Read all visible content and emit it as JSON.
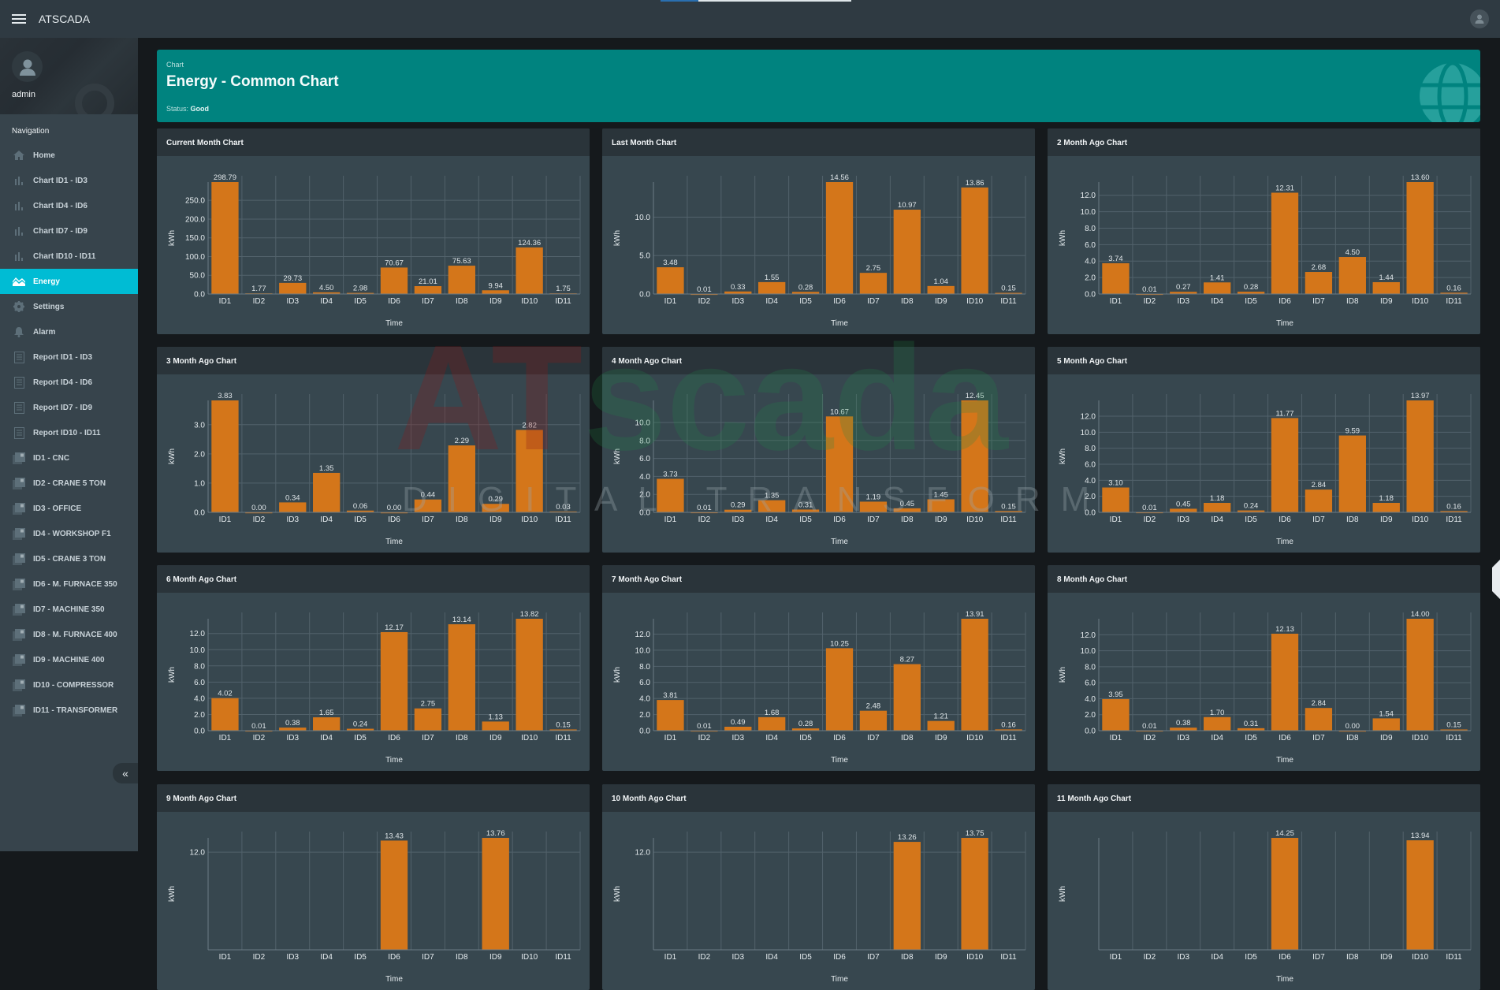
{
  "topbar": {
    "title": "ATSCADA",
    "menu_icon": "hamburger-icon",
    "user_icon": "user-avatar-icon",
    "loading_progress": 0.2
  },
  "sidebar": {
    "username": "admin",
    "nav_header": "Navigation",
    "items": [
      {
        "label": "Home",
        "icon": "home-icon",
        "active": false
      },
      {
        "label": "Chart ID1 - ID3",
        "icon": "bar-chart-icon",
        "active": false
      },
      {
        "label": "Chart ID4 - ID6",
        "icon": "bar-chart-icon",
        "active": false
      },
      {
        "label": "Chart ID7 - ID9",
        "icon": "bar-chart-icon",
        "active": false
      },
      {
        "label": "Chart ID10 - ID11",
        "icon": "bar-chart-icon",
        "active": false
      },
      {
        "label": "Energy",
        "icon": "area-chart-icon",
        "active": true
      },
      {
        "label": "Settings",
        "icon": "gear-icon",
        "active": false
      },
      {
        "label": "Alarm",
        "icon": "bell-icon",
        "active": false
      },
      {
        "label": "Report ID1 - ID3",
        "icon": "report-icon",
        "active": false
      },
      {
        "label": "Report ID4 - ID6",
        "icon": "report-icon",
        "active": false
      },
      {
        "label": "Report ID7 - ID9",
        "icon": "report-icon",
        "active": false
      },
      {
        "label": "Report ID10 - ID11",
        "icon": "report-icon",
        "active": false
      },
      {
        "label": "ID1 - CNC",
        "icon": "device-icon",
        "active": false
      },
      {
        "label": "ID2 - CRANE 5 TON",
        "icon": "device-icon",
        "active": false
      },
      {
        "label": "ID3 - OFFICE",
        "icon": "device-icon",
        "active": false
      },
      {
        "label": "ID4 - WORKSHOP F1",
        "icon": "device-icon",
        "active": false
      },
      {
        "label": "ID5 - CRANE 3 TON",
        "icon": "device-icon",
        "active": false
      },
      {
        "label": "ID6 - M. FURNACE 350",
        "icon": "device-icon",
        "active": false
      },
      {
        "label": "ID7 - MACHINE 350",
        "icon": "device-icon",
        "active": false
      },
      {
        "label": "ID8 - M. FURNACE 400",
        "icon": "device-icon",
        "active": false
      },
      {
        "label": "ID9 - MACHINE 400",
        "icon": "device-icon",
        "active": false
      },
      {
        "label": "ID10 - COMPRESSOR",
        "icon": "device-icon",
        "active": false
      },
      {
        "label": "ID11 - TRANSFORMER",
        "icon": "device-icon",
        "active": false
      }
    ],
    "collapse_label": "«"
  },
  "banner": {
    "crumb": "Chart",
    "title": "Energy - Common Chart",
    "status_label": "Status:",
    "status_value": "Good"
  },
  "colors": {
    "accent": "#00bcd4",
    "banner": "#00837f",
    "bar": "#d4761a",
    "card": "#37474f"
  },
  "chart_data": [
    {
      "type": "bar",
      "title": "Current Month Chart",
      "xlabel": "Time",
      "ylabel": "kWh",
      "categories": [
        "ID1",
        "ID2",
        "ID3",
        "ID4",
        "ID5",
        "ID6",
        "ID7",
        "ID8",
        "ID9",
        "ID10",
        "ID11"
      ],
      "values": [
        298.79,
        1.77,
        29.73,
        4.5,
        2.98,
        70.67,
        21.01,
        75.63,
        9.94,
        124.36,
        1.75
      ],
      "yticks": [
        0,
        50,
        100,
        150,
        200,
        250
      ],
      "ylim": [
        0,
        298.79
      ],
      "grid": true
    },
    {
      "type": "bar",
      "title": "Last Month Chart",
      "xlabel": "Time",
      "ylabel": "kWh",
      "categories": [
        "ID1",
        "ID2",
        "ID3",
        "ID4",
        "ID5",
        "ID6",
        "ID7",
        "ID8",
        "ID9",
        "ID10",
        "ID11"
      ],
      "values": [
        3.48,
        0.01,
        0.33,
        1.55,
        0.28,
        14.56,
        2.75,
        10.97,
        1.04,
        13.86,
        0.15
      ],
      "yticks": [
        0,
        5,
        10
      ],
      "ylim": [
        0,
        14.56
      ],
      "grid": true
    },
    {
      "type": "bar",
      "title": "2 Month Ago Chart",
      "xlabel": "Time",
      "ylabel": "kWh",
      "categories": [
        "ID1",
        "ID2",
        "ID3",
        "ID4",
        "ID5",
        "ID6",
        "ID7",
        "ID8",
        "ID9",
        "ID10",
        "ID11"
      ],
      "values": [
        3.74,
        0.01,
        0.27,
        1.41,
        0.28,
        12.31,
        2.68,
        4.5,
        1.44,
        13.6,
        0.16
      ],
      "yticks": [
        0,
        2,
        4,
        6,
        8,
        10,
        12
      ],
      "ylim": [
        0,
        13.6
      ],
      "grid": true
    },
    {
      "type": "bar",
      "title": "3 Month Ago Chart",
      "xlabel": "Time",
      "ylabel": "kWh",
      "categories": [
        "ID1",
        "ID2",
        "ID3",
        "ID4",
        "ID5",
        "ID6",
        "ID7",
        "ID8",
        "ID9",
        "ID10",
        "ID11"
      ],
      "values": [
        3.83,
        0.0,
        0.34,
        1.35,
        0.06,
        0.0,
        0.44,
        2.29,
        0.29,
        2.82,
        0.03
      ],
      "yticks": [
        0,
        1,
        2,
        3
      ],
      "ylim": [
        0,
        3.83
      ],
      "grid": true
    },
    {
      "type": "bar",
      "title": "4 Month Ago Chart",
      "xlabel": "Time",
      "ylabel": "kWh",
      "categories": [
        "ID1",
        "ID2",
        "ID3",
        "ID4",
        "ID5",
        "ID6",
        "ID7",
        "ID8",
        "ID9",
        "ID10",
        "ID11"
      ],
      "values": [
        3.73,
        0.01,
        0.29,
        1.35,
        0.31,
        10.67,
        1.19,
        0.45,
        1.45,
        12.45,
        0.15
      ],
      "yticks": [
        0,
        2,
        4,
        6,
        8,
        10
      ],
      "ylim": [
        0,
        12.45
      ],
      "grid": true
    },
    {
      "type": "bar",
      "title": "5 Month Ago Chart",
      "xlabel": "Time",
      "ylabel": "kWh",
      "categories": [
        "ID1",
        "ID2",
        "ID3",
        "ID4",
        "ID5",
        "ID6",
        "ID7",
        "ID8",
        "ID9",
        "ID10",
        "ID11"
      ],
      "values": [
        3.1,
        0.01,
        0.45,
        1.18,
        0.24,
        11.77,
        2.84,
        9.59,
        1.18,
        13.97,
        0.16
      ],
      "yticks": [
        0,
        2,
        4,
        6,
        8,
        10,
        12
      ],
      "ylim": [
        0,
        13.97
      ],
      "grid": true
    },
    {
      "type": "bar",
      "title": "6 Month Ago Chart",
      "xlabel": "Time",
      "ylabel": "kWh",
      "categories": [
        "ID1",
        "ID2",
        "ID3",
        "ID4",
        "ID5",
        "ID6",
        "ID7",
        "ID8",
        "ID9",
        "ID10",
        "ID11"
      ],
      "values": [
        4.02,
        0.01,
        0.38,
        1.65,
        0.24,
        12.17,
        2.75,
        13.14,
        1.13,
        13.82,
        0.15
      ],
      "yticks": [
        0,
        2,
        4,
        6,
        8,
        10,
        12
      ],
      "ylim": [
        0,
        13.82
      ],
      "grid": true
    },
    {
      "type": "bar",
      "title": "7 Month Ago Chart",
      "xlabel": "Time",
      "ylabel": "kWh",
      "categories": [
        "ID1",
        "ID2",
        "ID3",
        "ID4",
        "ID5",
        "ID6",
        "ID7",
        "ID8",
        "ID9",
        "ID10",
        "ID11"
      ],
      "values": [
        3.81,
        0.01,
        0.49,
        1.68,
        0.28,
        10.25,
        2.48,
        8.27,
        1.21,
        13.91,
        0.16
      ],
      "yticks": [
        0,
        2,
        4,
        6,
        8,
        10,
        12
      ],
      "ylim": [
        0,
        13.91
      ],
      "grid": true
    },
    {
      "type": "bar",
      "title": "8 Month Ago Chart",
      "xlabel": "Time",
      "ylabel": "kWh",
      "categories": [
        "ID1",
        "ID2",
        "ID3",
        "ID4",
        "ID5",
        "ID6",
        "ID7",
        "ID8",
        "ID9",
        "ID10",
        "ID11"
      ],
      "values": [
        3.95,
        0.01,
        0.38,
        1.7,
        0.31,
        12.13,
        2.84,
        0.0,
        1.54,
        14.0,
        0.15
      ],
      "yticks": [
        0,
        2,
        4,
        6,
        8,
        10,
        12
      ],
      "ylim": [
        0,
        14.0
      ],
      "grid": true
    },
    {
      "type": "bar",
      "title": "9 Month Ago Chart",
      "xlabel": "Time",
      "ylabel": "kWh",
      "categories": [
        "ID1",
        "ID2",
        "ID3",
        "ID4",
        "ID5",
        "ID6",
        "ID7",
        "ID8",
        "ID9",
        "ID10",
        "ID11"
      ],
      "values": [
        null,
        null,
        null,
        null,
        null,
        13.43,
        null,
        null,
        13.76,
        null,
        null
      ],
      "yticks": [
        12
      ],
      "ylim": [
        0,
        13.76
      ],
      "grid": true,
      "partially_visible": true
    },
    {
      "type": "bar",
      "title": "10 Month Ago Chart",
      "xlabel": "Time",
      "ylabel": "kWh",
      "categories": [
        "ID1",
        "ID2",
        "ID3",
        "ID4",
        "ID5",
        "ID6",
        "ID7",
        "ID8",
        "ID9",
        "ID10",
        "ID11"
      ],
      "values": [
        null,
        null,
        null,
        null,
        null,
        null,
        null,
        13.26,
        null,
        13.75,
        null
      ],
      "yticks": [
        12
      ],
      "ylim": [
        0,
        13.75
      ],
      "grid": true,
      "partially_visible": true
    },
    {
      "type": "bar",
      "title": "11 Month Ago Chart",
      "xlabel": "Time",
      "ylabel": "kWh",
      "categories": [
        "ID1",
        "ID2",
        "ID3",
        "ID4",
        "ID5",
        "ID6",
        "ID7",
        "ID8",
        "ID9",
        "ID10",
        "ID11"
      ],
      "values": [
        null,
        null,
        null,
        null,
        null,
        14.25,
        null,
        null,
        null,
        13.94,
        null
      ],
      "yticks": [],
      "ylim": [
        0,
        14.25
      ],
      "grid": true,
      "partially_visible": true
    }
  ]
}
